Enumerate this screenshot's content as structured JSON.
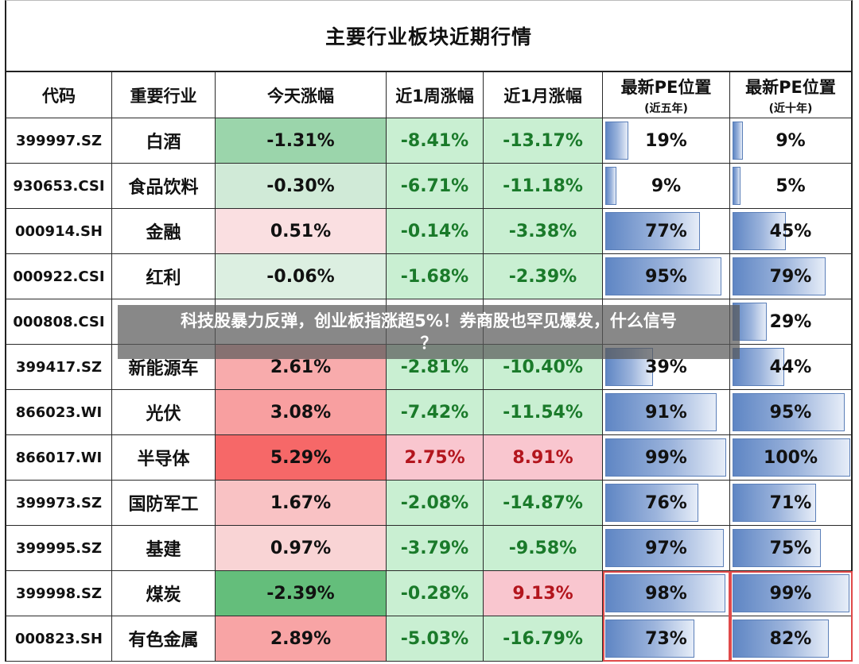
{
  "title": "主要行业板块近期行情",
  "headers": {
    "code": "代码",
    "industry": "重要行业",
    "today": "今天涨幅",
    "week": "近1周涨幅",
    "month": "近1月涨幅",
    "pe5_title": "最新PE位置",
    "pe5_sub": "(近五年)",
    "pe10_title": "最新PE位置",
    "pe10_sub": "(近十年)"
  },
  "overlay": {
    "line1": "科技股暴力反弹，创业板指涨超5%！券商股也罕见爆发，什么信号",
    "line2": "？"
  },
  "colors": {
    "neg_green_text": "#1a7a2a",
    "pos_red_text": "#b3151d",
    "pe_bar": "#5f86c4",
    "highlight_border": "#e04a4a"
  },
  "chart_data": {
    "type": "table",
    "columns": [
      "代码",
      "重要行业",
      "今天涨幅",
      "近1周涨幅",
      "近1月涨幅",
      "最新PE位置(近五年)",
      "最新PE位置(近十年)"
    ],
    "rows": [
      {
        "code": "399997.SZ",
        "industry": "白酒",
        "today": "-1.31%",
        "week": "-8.41%",
        "month": "-13.17%",
        "pe5": "19%",
        "pe10": "9%"
      },
      {
        "code": "930653.CSI",
        "industry": "食品饮料",
        "today": "-0.30%",
        "week": "-6.71%",
        "month": "-11.18%",
        "pe5": "9%",
        "pe10": "5%"
      },
      {
        "code": "000914.SH",
        "industry": "金融",
        "today": "0.51%",
        "week": "-0.14%",
        "month": "-3.38%",
        "pe5": "77%",
        "pe10": "45%"
      },
      {
        "code": "000922.CSI",
        "industry": "红利",
        "today": "-0.06%",
        "week": "-1.68%",
        "month": "-2.39%",
        "pe5": "95%",
        "pe10": "79%"
      },
      {
        "code": "000808.CSI",
        "industry": "",
        "today": "",
        "week": "",
        "month": "",
        "pe5": "",
        "pe10": "29%"
      },
      {
        "code": "399417.SZ",
        "industry": "新能源车",
        "today": "2.61%",
        "week": "-2.81%",
        "month": "-10.40%",
        "pe5": "39%",
        "pe10": "44%"
      },
      {
        "code": "866023.WI",
        "industry": "光伏",
        "today": "3.08%",
        "week": "-7.42%",
        "month": "-11.54%",
        "pe5": "91%",
        "pe10": "95%"
      },
      {
        "code": "866017.WI",
        "industry": "半导体",
        "today": "5.29%",
        "week": "2.75%",
        "month": "8.91%",
        "pe5": "99%",
        "pe10": "100%"
      },
      {
        "code": "399973.SZ",
        "industry": "国防军工",
        "today": "1.67%",
        "week": "-2.08%",
        "month": "-14.87%",
        "pe5": "76%",
        "pe10": "71%"
      },
      {
        "code": "399995.SZ",
        "industry": "基建",
        "today": "0.97%",
        "week": "-3.79%",
        "month": "-9.58%",
        "pe5": "97%",
        "pe10": "75%"
      },
      {
        "code": "399998.SZ",
        "industry": "煤炭",
        "today": "-2.39%",
        "week": "-0.28%",
        "month": "9.13%",
        "pe5": "98%",
        "pe10": "99%"
      },
      {
        "code": "000823.SH",
        "industry": "有色金属",
        "today": "2.89%",
        "week": "-5.03%",
        "month": "-16.79%",
        "pe5": "73%",
        "pe10": "82%"
      }
    ],
    "pe5_levels": [
      19,
      9,
      77,
      95,
      29,
      39,
      91,
      99,
      76,
      97,
      98,
      73
    ],
    "pe10_levels": [
      9,
      5,
      45,
      79,
      29,
      44,
      95,
      100,
      71,
      75,
      99,
      82
    ],
    "highlighted_rows": [
      "399998.SZ",
      "000823.SH"
    ]
  }
}
